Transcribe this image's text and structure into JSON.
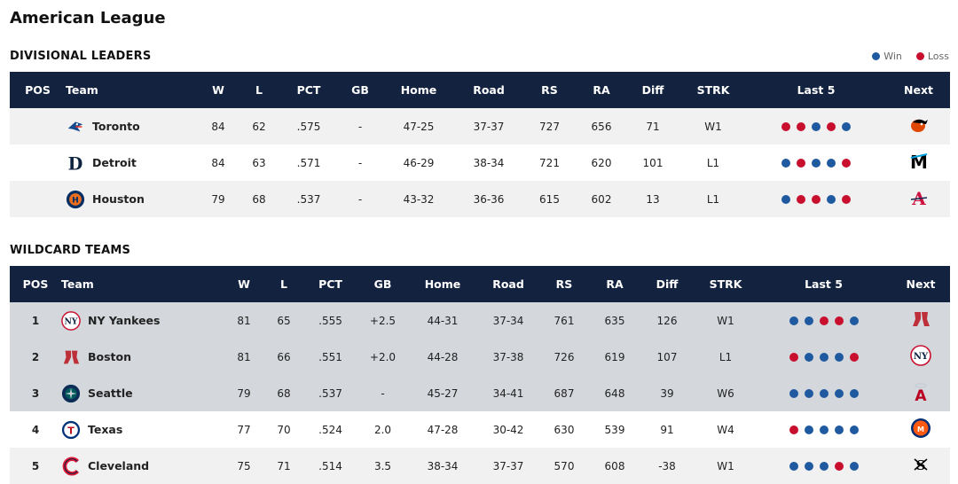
{
  "league_title": "American League",
  "legend": {
    "win_label": "Win",
    "loss_label": "Loss",
    "win_color": "#1f5aa0",
    "loss_color": "#c8102e"
  },
  "divisional": {
    "title": "DIVISIONAL LEADERS",
    "headers": [
      "POS",
      "Team",
      "W",
      "L",
      "PCT",
      "GB",
      "Home",
      "Road",
      "RS",
      "RA",
      "Diff",
      "STRK",
      "Last 5",
      "Next"
    ],
    "rows": [
      {
        "pos": "",
        "team": "Toronto",
        "logo": "blue-jays-logo",
        "w": "84",
        "l": "62",
        "pct": ".575",
        "gb": "-",
        "home": "47-25",
        "road": "37-37",
        "rs": "727",
        "ra": "656",
        "diff": "71",
        "strk": "W1",
        "last5": [
          "L",
          "L",
          "W",
          "L",
          "W"
        ],
        "next": "orioles-logo"
      },
      {
        "pos": "",
        "team": "Detroit",
        "logo": "tigers-logo",
        "w": "84",
        "l": "63",
        "pct": ".571",
        "gb": "-",
        "home": "46-29",
        "road": "38-34",
        "rs": "721",
        "ra": "620",
        "diff": "101",
        "strk": "L1",
        "last5": [
          "W",
          "L",
          "W",
          "W",
          "L"
        ],
        "next": "marlins-logo"
      },
      {
        "pos": "",
        "team": "Houston",
        "logo": "astros-logo",
        "w": "79",
        "l": "68",
        "pct": ".537",
        "gb": "-",
        "home": "43-32",
        "road": "36-36",
        "rs": "615",
        "ra": "602",
        "diff": "13",
        "strk": "L1",
        "last5": [
          "W",
          "L",
          "L",
          "W",
          "L"
        ],
        "next": "braves-logo"
      }
    ]
  },
  "wildcard": {
    "title": "WILDCARD TEAMS",
    "headers": [
      "POS",
      "Team",
      "W",
      "L",
      "PCT",
      "GB",
      "Home",
      "Road",
      "RS",
      "RA",
      "Diff",
      "STRK",
      "Last 5",
      "Next"
    ],
    "rows": [
      {
        "pos": "1",
        "team": "NY Yankees",
        "logo": "yankees-logo",
        "w": "81",
        "l": "65",
        "pct": ".555",
        "gb": "+2.5",
        "home": "44-31",
        "road": "37-34",
        "rs": "761",
        "ra": "635",
        "diff": "126",
        "strk": "W1",
        "last5": [
          "W",
          "W",
          "L",
          "L",
          "W"
        ],
        "next": "red-sox-logo",
        "qualified": true
      },
      {
        "pos": "2",
        "team": "Boston",
        "logo": "red-sox-logo",
        "w": "81",
        "l": "66",
        "pct": ".551",
        "gb": "+2.0",
        "home": "44-28",
        "road": "37-38",
        "rs": "726",
        "ra": "619",
        "diff": "107",
        "strk": "L1",
        "last5": [
          "L",
          "W",
          "W",
          "W",
          "L"
        ],
        "next": "yankees-logo",
        "qualified": true
      },
      {
        "pos": "3",
        "team": "Seattle",
        "logo": "mariners-logo",
        "w": "79",
        "l": "68",
        "pct": ".537",
        "gb": "-",
        "home": "45-27",
        "road": "34-41",
        "rs": "687",
        "ra": "648",
        "diff": "39",
        "strk": "W6",
        "last5": [
          "W",
          "W",
          "W",
          "W",
          "W"
        ],
        "next": "angels-logo",
        "qualified": true
      },
      {
        "pos": "4",
        "team": "Texas",
        "logo": "rangers-logo",
        "w": "77",
        "l": "70",
        "pct": ".524",
        "gb": "2.0",
        "home": "47-28",
        "road": "30-42",
        "rs": "630",
        "ra": "539",
        "diff": "91",
        "strk": "W4",
        "last5": [
          "L",
          "W",
          "W",
          "W",
          "W"
        ],
        "next": "mets-logo",
        "qualified": false
      },
      {
        "pos": "5",
        "team": "Cleveland",
        "logo": "guardians-logo",
        "w": "75",
        "l": "71",
        "pct": ".514",
        "gb": "3.5",
        "home": "38-34",
        "road": "37-37",
        "rs": "570",
        "ra": "608",
        "diff": "-38",
        "strk": "W1",
        "last5": [
          "W",
          "W",
          "W",
          "L",
          "W"
        ],
        "next": "white-sox-logo",
        "qualified": false
      }
    ]
  }
}
